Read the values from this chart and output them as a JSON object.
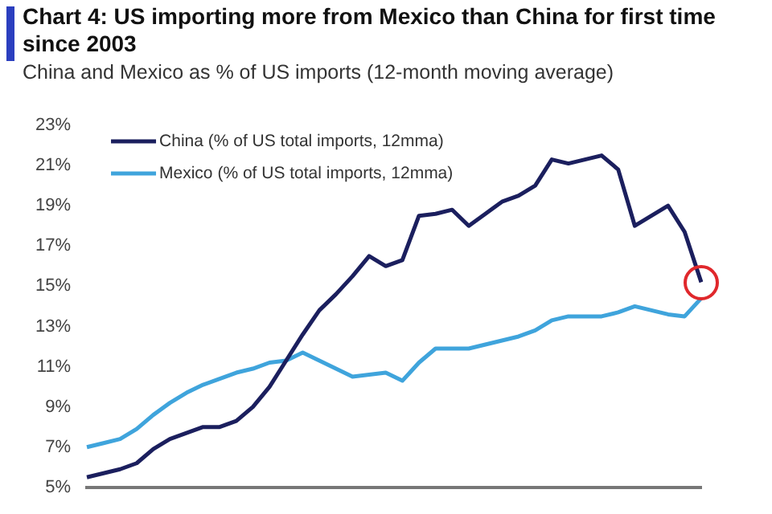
{
  "chart_data": {
    "type": "line",
    "title": "Chart 4: US importing more from Mexico than China for first time since 2003",
    "subtitle": "China and Mexico as % of US imports (12-month moving average)",
    "categories": [
      null,
      null,
      null,
      null,
      null,
      null,
      null,
      null,
      null,
      null,
      null,
      null,
      null,
      null,
      null,
      null,
      null,
      null,
      null,
      null,
      null,
      null,
      null,
      null,
      null,
      null,
      null,
      null,
      null,
      null,
      null,
      null,
      null,
      null,
      null,
      null,
      null,
      null
    ],
    "series": [
      {
        "name": "China (% of US total imports, 12mma)",
        "color": "#1b1f5e",
        "values": [
          5.5,
          5.7,
          5.9,
          6.2,
          6.9,
          7.4,
          7.7,
          8.0,
          8.0,
          8.3,
          9.0,
          10.0,
          11.3,
          12.6,
          13.8,
          14.6,
          15.5,
          16.5,
          16.0,
          16.3,
          18.5,
          18.6,
          18.8,
          18.0,
          18.6,
          19.2,
          19.5,
          20.0,
          21.3,
          21.1,
          21.3,
          21.5,
          20.8,
          18.0,
          18.5,
          19.0,
          17.7,
          15.2
        ]
      },
      {
        "name": "Mexico (% of US total imports, 12mma)",
        "color": "#3fa4dc",
        "values": [
          7.0,
          7.2,
          7.4,
          7.9,
          8.6,
          9.2,
          9.7,
          10.1,
          10.4,
          10.7,
          10.9,
          11.2,
          11.3,
          11.7,
          11.3,
          10.9,
          10.5,
          10.6,
          10.7,
          10.3,
          11.2,
          11.9,
          11.9,
          11.9,
          12.1,
          12.3,
          12.5,
          12.8,
          13.3,
          13.5,
          13.5,
          13.5,
          13.7,
          14.0,
          13.8,
          13.6,
          13.5,
          14.4
        ]
      }
    ],
    "ylim": [
      5,
      23
    ],
    "yticks": [
      {
        "value": 5,
        "label": "5%"
      },
      {
        "value": 7,
        "label": "7%"
      },
      {
        "value": 9,
        "label": "9%"
      },
      {
        "value": 11,
        "label": "11%"
      },
      {
        "value": 13,
        "label": "13%"
      },
      {
        "value": 15,
        "label": "15%"
      },
      {
        "value": 17,
        "label": "17%"
      },
      {
        "value": 19,
        "label": "19%"
      },
      {
        "value": 21,
        "label": "21%"
      },
      {
        "value": 23,
        "label": "23%"
      }
    ],
    "grid": false,
    "legend": "top left",
    "tick_labels": "y",
    "marker": "none",
    "line_style": "solid"
  }
}
